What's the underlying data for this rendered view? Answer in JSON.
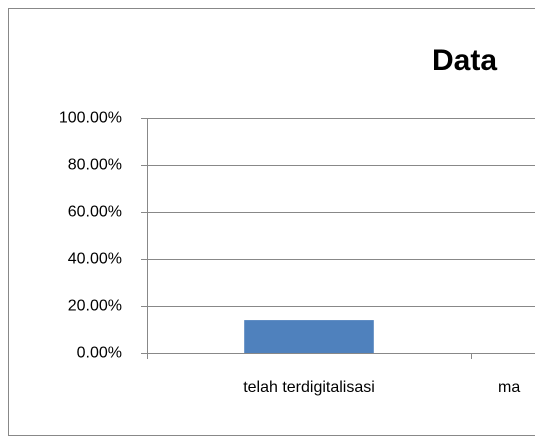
{
  "chart_data": {
    "type": "bar",
    "title": "Data",
    "categories": [
      "telah terdigitalisasi",
      "ma"
    ],
    "values": [
      14,
      null
    ],
    "color": "#4f81bd",
    "ylim": [
      0,
      100
    ],
    "yticks": [
      {
        "value": 0,
        "label": "0.00%"
      },
      {
        "value": 20,
        "label": "20.00%"
      },
      {
        "value": 40,
        "label": "40.00%"
      },
      {
        "value": 60,
        "label": "60.00%"
      },
      {
        "value": 80,
        "label": "80.00%"
      },
      {
        "value": 100,
        "label": "100.00%"
      }
    ],
    "grid": true
  }
}
